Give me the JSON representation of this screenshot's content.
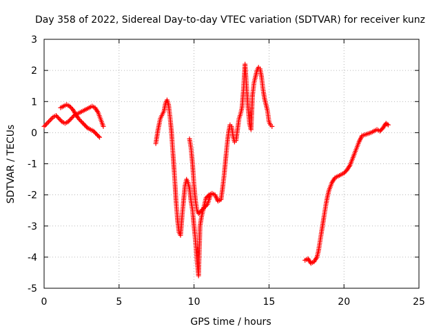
{
  "chart_data": {
    "type": "scatter",
    "title": "Day 358 of 2022, Sidereal Day-to-day VTEC variation (SDTVAR) for receiver kunz",
    "xlabel": "GPS time / hours",
    "ylabel": "SDTVAR / TECUs",
    "xlim": [
      0,
      25
    ],
    "ylim": [
      -5,
      3
    ],
    "xticks": [
      0,
      5,
      10,
      15,
      20,
      25
    ],
    "yticks": [
      -5,
      -4,
      -3,
      -2,
      -1,
      0,
      1,
      2,
      3
    ],
    "grid": true,
    "marker": "+",
    "color": "#ff0000",
    "series": [
      {
        "points": [
          [
            0.0,
            0.2
          ],
          [
            0.3,
            0.35
          ],
          [
            0.6,
            0.5
          ],
          [
            0.8,
            0.55
          ],
          [
            1.0,
            0.45
          ],
          [
            1.2,
            0.35
          ],
          [
            1.4,
            0.3
          ],
          [
            1.6,
            0.35
          ],
          [
            1.8,
            0.45
          ],
          [
            2.0,
            0.55
          ],
          [
            2.2,
            0.6
          ],
          [
            2.4,
            0.65
          ],
          [
            2.6,
            0.7
          ],
          [
            2.8,
            0.75
          ],
          [
            3.0,
            0.8
          ],
          [
            3.2,
            0.85
          ],
          [
            3.4,
            0.8
          ],
          [
            3.6,
            0.65
          ],
          [
            3.8,
            0.4
          ],
          [
            3.95,
            0.2
          ]
        ]
      },
      {
        "points": [
          [
            1.1,
            0.8
          ],
          [
            1.3,
            0.85
          ],
          [
            1.5,
            0.9
          ],
          [
            1.7,
            0.85
          ],
          [
            1.9,
            0.75
          ],
          [
            2.1,
            0.6
          ],
          [
            2.3,
            0.45
          ],
          [
            2.5,
            0.35
          ],
          [
            2.7,
            0.25
          ],
          [
            2.9,
            0.15
          ],
          [
            3.1,
            0.1
          ],
          [
            3.3,
            0.05
          ],
          [
            3.5,
            -0.05
          ],
          [
            3.7,
            -0.15
          ]
        ]
      },
      {
        "points": [
          [
            7.45,
            -0.35
          ],
          [
            7.6,
            0.1
          ],
          [
            7.75,
            0.45
          ],
          [
            7.9,
            0.6
          ],
          [
            8.0,
            0.7
          ],
          [
            8.1,
            0.95
          ],
          [
            8.2,
            1.05
          ],
          [
            8.3,
            0.9
          ],
          [
            8.4,
            0.5
          ],
          [
            8.5,
            0.0
          ],
          [
            8.6,
            -0.7
          ],
          [
            8.7,
            -1.4
          ],
          [
            8.8,
            -2.2
          ],
          [
            8.9,
            -2.8
          ],
          [
            9.0,
            -3.2
          ],
          [
            9.1,
            -3.3
          ],
          [
            9.2,
            -2.7
          ],
          [
            9.3,
            -2.2
          ],
          [
            9.4,
            -1.7
          ],
          [
            9.5,
            -1.5
          ],
          [
            9.6,
            -1.6
          ],
          [
            9.7,
            -1.8
          ],
          [
            9.8,
            -2.2
          ],
          [
            9.9,
            -2.5
          ],
          [
            10.0,
            -3.0
          ],
          [
            10.1,
            -3.5
          ],
          [
            10.2,
            -4.1
          ],
          [
            10.3,
            -4.6
          ],
          [
            10.4,
            -3.0
          ],
          [
            10.5,
            -2.7
          ],
          [
            10.6,
            -2.5
          ],
          [
            10.7,
            -2.3
          ],
          [
            10.8,
            -2.1
          ],
          [
            11.0,
            -2.0
          ],
          [
            11.2,
            -1.95
          ],
          [
            11.4,
            -2.0
          ],
          [
            11.6,
            -2.2
          ],
          [
            11.8,
            -2.15
          ],
          [
            11.9,
            -1.8
          ],
          [
            12.0,
            -1.4
          ],
          [
            12.1,
            -0.9
          ],
          [
            12.2,
            -0.4
          ],
          [
            12.3,
            0.0
          ],
          [
            12.4,
            0.25
          ],
          [
            12.5,
            0.2
          ],
          [
            12.6,
            -0.1
          ],
          [
            12.7,
            -0.3
          ],
          [
            12.8,
            -0.25
          ],
          [
            12.9,
            0.1
          ],
          [
            13.0,
            0.45
          ],
          [
            13.1,
            0.6
          ],
          [
            13.2,
            0.8
          ],
          [
            13.3,
            1.4
          ],
          [
            13.4,
            2.2
          ],
          [
            13.5,
            1.5
          ],
          [
            13.6,
            0.8
          ],
          [
            13.7,
            0.3
          ],
          [
            13.8,
            0.1
          ],
          [
            13.9,
            1.2
          ],
          [
            14.0,
            1.6
          ],
          [
            14.1,
            1.8
          ],
          [
            14.2,
            2.0
          ],
          [
            14.3,
            2.1
          ],
          [
            14.4,
            2.05
          ],
          [
            14.5,
            1.8
          ],
          [
            14.6,
            1.4
          ],
          [
            14.7,
            1.1
          ],
          [
            14.8,
            0.9
          ],
          [
            14.9,
            0.7
          ],
          [
            15.0,
            0.35
          ],
          [
            15.1,
            0.25
          ],
          [
            15.2,
            0.2
          ]
        ]
      },
      {
        "points": [
          [
            9.7,
            -0.2
          ],
          [
            9.8,
            -0.5
          ],
          [
            9.9,
            -1.0
          ],
          [
            10.0,
            -1.7
          ],
          [
            10.1,
            -2.2
          ],
          [
            10.2,
            -2.5
          ],
          [
            10.3,
            -2.6
          ],
          [
            10.5,
            -2.5
          ],
          [
            10.7,
            -2.4
          ],
          [
            10.9,
            -2.3
          ],
          [
            11.1,
            -2.0
          ]
        ]
      },
      {
        "points": [
          [
            17.4,
            -4.1
          ],
          [
            17.6,
            -4.05
          ],
          [
            17.8,
            -4.2
          ],
          [
            18.0,
            -4.15
          ],
          [
            18.2,
            -4.0
          ],
          [
            18.3,
            -3.8
          ],
          [
            18.4,
            -3.5
          ],
          [
            18.5,
            -3.2
          ],
          [
            18.6,
            -2.9
          ],
          [
            18.7,
            -2.6
          ],
          [
            18.8,
            -2.3
          ],
          [
            18.9,
            -2.05
          ],
          [
            19.0,
            -1.85
          ],
          [
            19.2,
            -1.6
          ],
          [
            19.4,
            -1.45
          ],
          [
            19.6,
            -1.4
          ],
          [
            19.8,
            -1.35
          ],
          [
            20.0,
            -1.3
          ],
          [
            20.2,
            -1.2
          ],
          [
            20.4,
            -1.05
          ],
          [
            20.6,
            -0.8
          ],
          [
            20.8,
            -0.55
          ],
          [
            21.0,
            -0.3
          ],
          [
            21.2,
            -0.1
          ],
          [
            21.5,
            -0.05
          ],
          [
            21.8,
            0.0
          ],
          [
            22.0,
            0.05
          ],
          [
            22.2,
            0.1
          ],
          [
            22.4,
            0.05
          ],
          [
            22.6,
            0.15
          ],
          [
            22.8,
            0.3
          ],
          [
            22.95,
            0.25
          ]
        ]
      }
    ]
  }
}
